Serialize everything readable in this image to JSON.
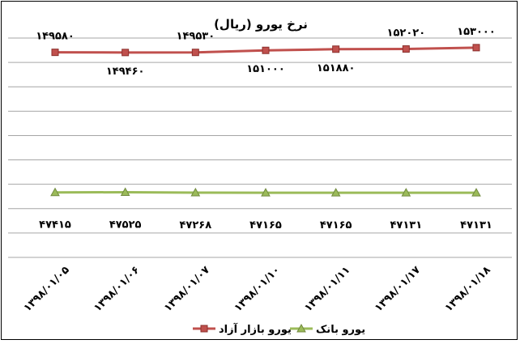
{
  "chart_data": {
    "type": "line",
    "title": "نرخ یورو (ریال)",
    "xlabel": "",
    "ylabel": "",
    "categories": [
      "۱۳۹۸/۰۱/۰۵",
      "۱۳۹۸/۰۱/۰۶",
      "۱۳۹۸/۰۱/۰۷",
      "۱۳۹۸/۰۱/۱۰",
      "۱۳۹۸/۰۱/۱۱",
      "۱۳۹۸/۰۱/۱۷",
      "۱۳۹۸/۰۱/۱۸"
    ],
    "ylim": [
      0,
      160000
    ],
    "grid": true,
    "legend_position": "bottom",
    "series": [
      {
        "name": "یورو بازار آزاد",
        "color": "#c0504d",
        "marker": "square",
        "values": [
          149580,
          149460,
          149530,
          151000,
          151880,
          152020,
          153000
        ],
        "labels": [
          "۱۴۹۵۸۰",
          "۱۴۹۴۶۰",
          "۱۴۹۵۳۰",
          "۱۵۱۰۰۰",
          "۱۵۱۸۸۰",
          "۱۵۲۰۲۰",
          "۱۵۳۰۰۰"
        ],
        "label_side": [
          "above",
          "below",
          "above",
          "below",
          "below",
          "above",
          "above"
        ]
      },
      {
        "name": "یورو بانک",
        "color": "#9bbb59",
        "marker": "triangle",
        "values": [
          47415,
          47525,
          47268,
          47165,
          47165,
          47131,
          47131
        ],
        "labels": [
          "۴۷۴۱۵",
          "۴۷۵۲۵",
          "۴۷۲۶۸",
          "۴۷۱۶۵",
          "۴۷۱۶۵",
          "۴۷۱۳۱",
          "۴۷۱۳۱"
        ],
        "label_side": [
          "below",
          "below",
          "below",
          "below",
          "below",
          "below",
          "below"
        ]
      }
    ]
  }
}
